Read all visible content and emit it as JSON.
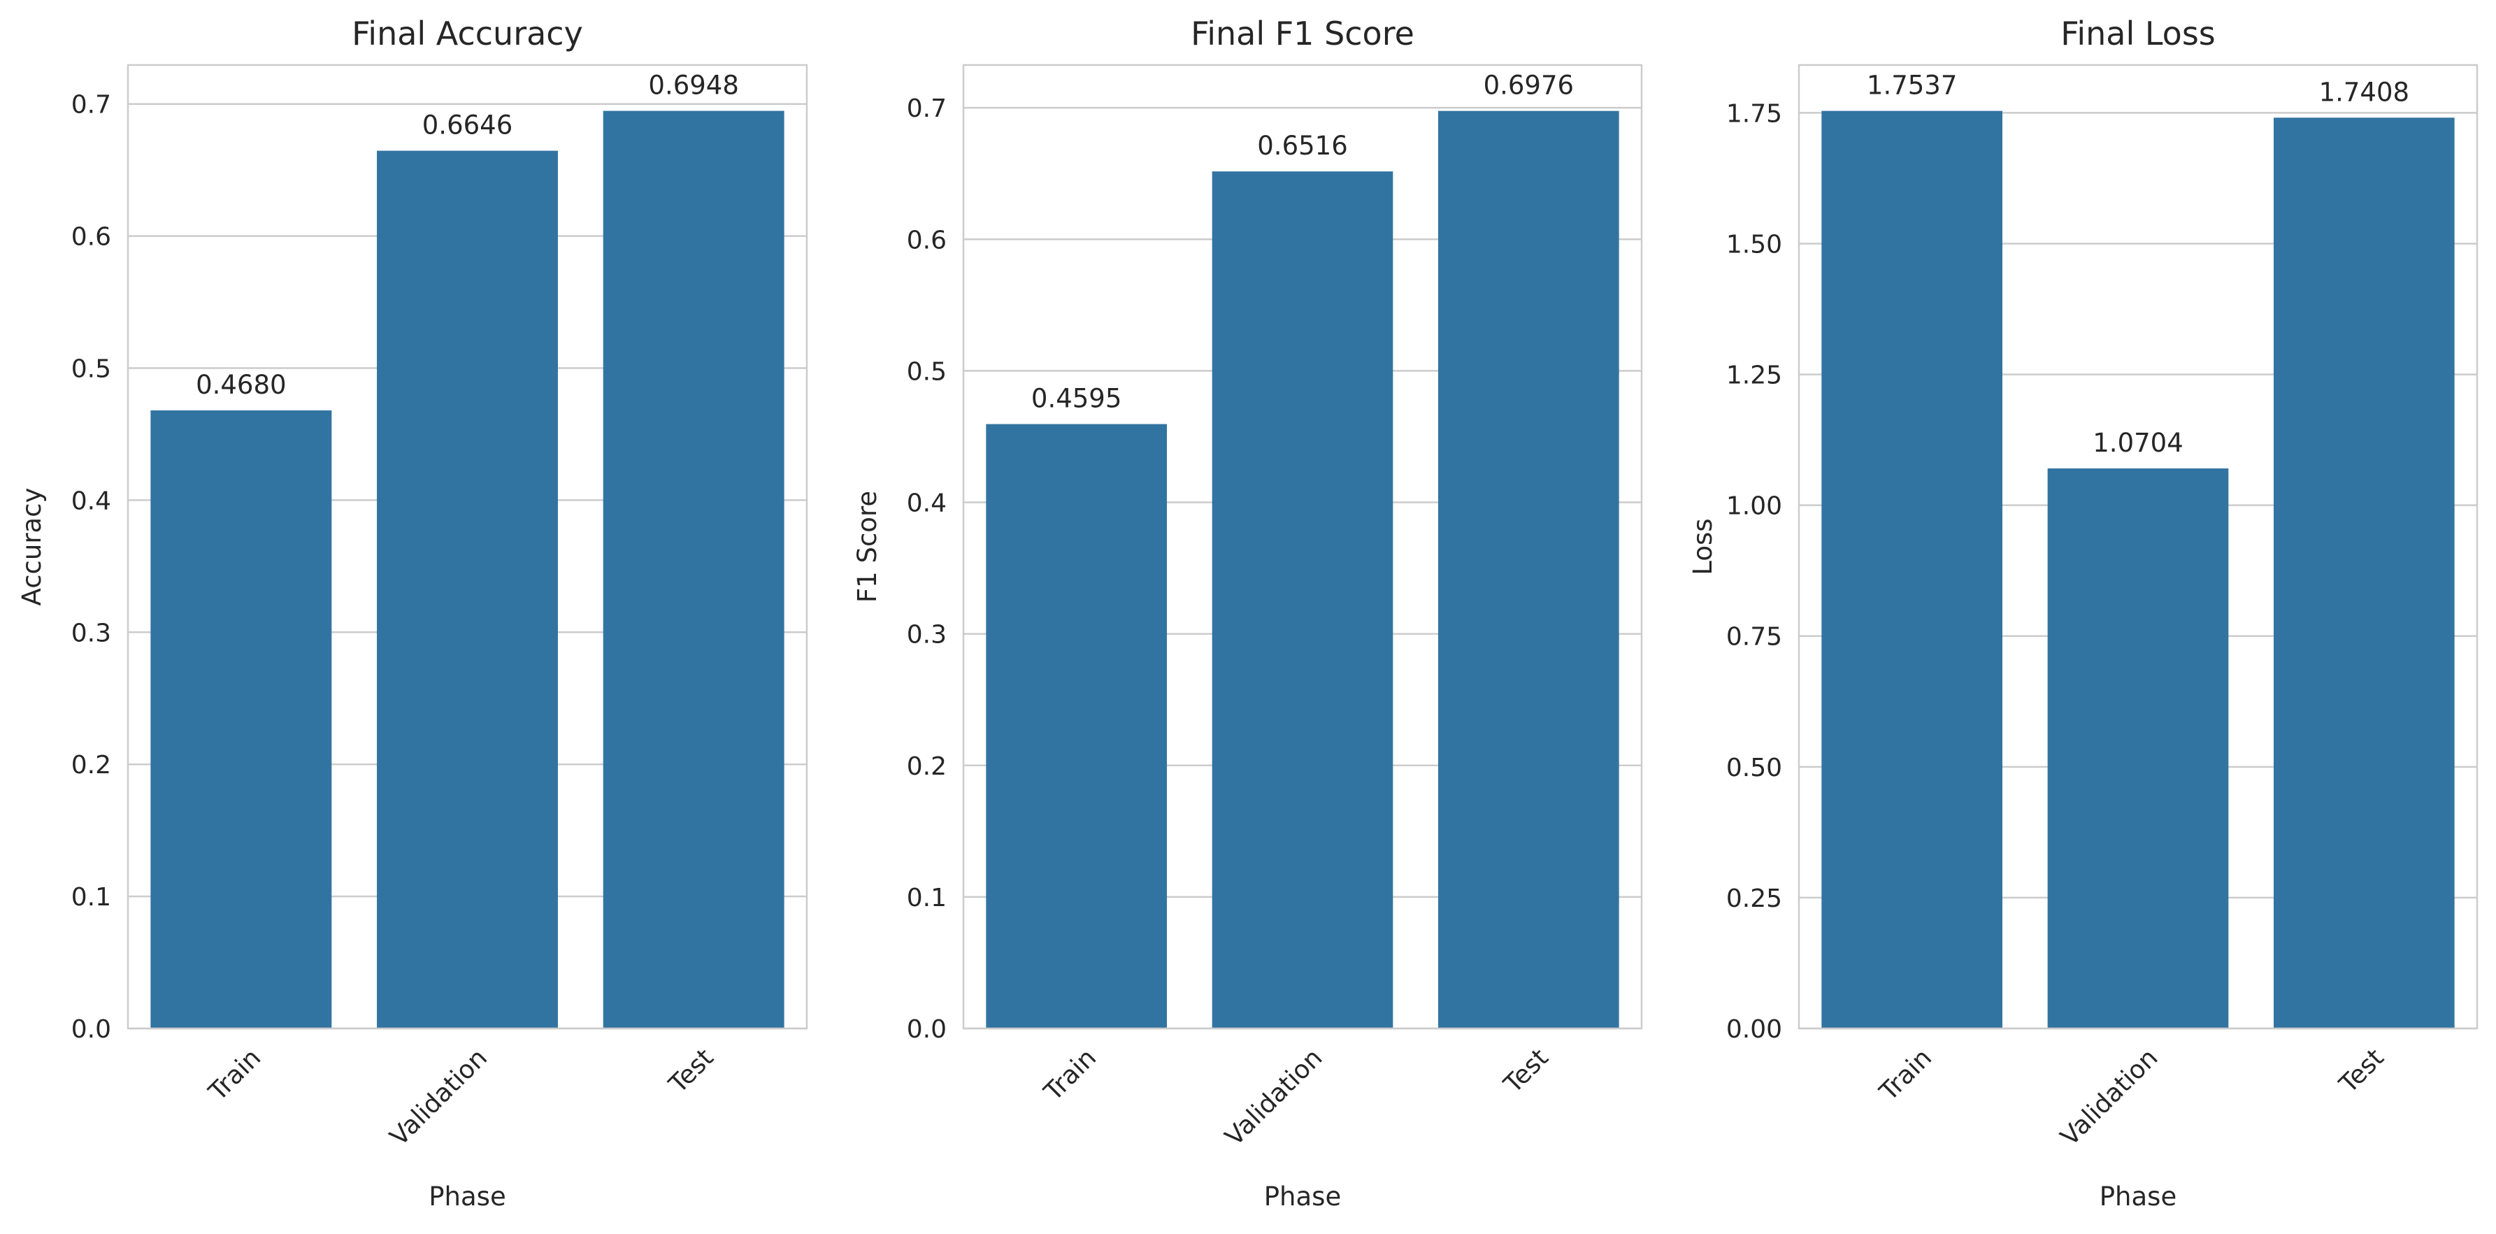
{
  "colors": {
    "bar": "#3274a1",
    "grid": "#cccccc",
    "text": "#262626"
  },
  "chart_data": [
    {
      "type": "bar",
      "title": "Final Accuracy",
      "xlabel": "Phase",
      "ylabel": "Accuracy",
      "categories": [
        "Train",
        "Validation",
        "Test"
      ],
      "values": [
        0.468,
        0.6646,
        0.6948
      ],
      "value_labels": [
        "0.4680",
        "0.6646",
        "0.6948"
      ],
      "ylim": [
        0,
        0.7295
      ],
      "yticks": [
        0.0,
        0.1,
        0.2,
        0.3,
        0.4,
        0.5,
        0.6,
        0.7
      ],
      "ytick_labels": [
        "0.0",
        "0.1",
        "0.2",
        "0.3",
        "0.4",
        "0.5",
        "0.6",
        "0.7"
      ],
      "grid": "horizontal"
    },
    {
      "type": "bar",
      "title": "Final F1 Score",
      "xlabel": "Phase",
      "ylabel": "F1 Score",
      "categories": [
        "Train",
        "Validation",
        "Test"
      ],
      "values": [
        0.4595,
        0.6516,
        0.6976
      ],
      "value_labels": [
        "0.4595",
        "0.6516",
        "0.6976"
      ],
      "ylim": [
        0,
        0.7325
      ],
      "yticks": [
        0.0,
        0.1,
        0.2,
        0.3,
        0.4,
        0.5,
        0.6,
        0.7
      ],
      "ytick_labels": [
        "0.0",
        "0.1",
        "0.2",
        "0.3",
        "0.4",
        "0.5",
        "0.6",
        "0.7"
      ],
      "grid": "horizontal"
    },
    {
      "type": "bar",
      "title": "Final Loss",
      "xlabel": "Phase",
      "ylabel": "Loss",
      "categories": [
        "Train",
        "Validation",
        "Test"
      ],
      "values": [
        1.7537,
        1.0704,
        1.7408
      ],
      "value_labels": [
        "1.7537",
        "1.0704",
        "1.7408"
      ],
      "ylim": [
        0,
        1.8414
      ],
      "yticks": [
        0.0,
        0.25,
        0.5,
        0.75,
        1.0,
        1.25,
        1.5,
        1.75
      ],
      "ytick_labels": [
        "0.00",
        "0.25",
        "0.50",
        "0.75",
        "1.00",
        "1.25",
        "1.50",
        "1.75"
      ],
      "grid": "horizontal"
    }
  ]
}
